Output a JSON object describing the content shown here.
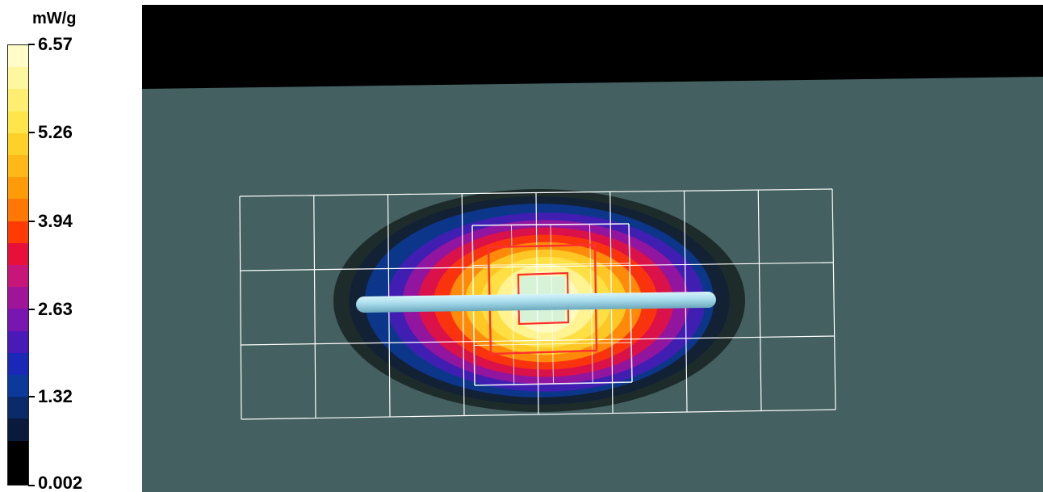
{
  "chart_data": {
    "type": "heatmap",
    "title": "",
    "unit": "mW/g",
    "colorbar": {
      "min": 0.002,
      "max": 6.57,
      "tick_labels": [
        "6.57",
        "5.26",
        "3.94",
        "2.63",
        "1.32",
        "0.002"
      ],
      "tick_values": [
        6.57,
        5.26,
        3.94,
        2.63,
        1.32,
        0.002
      ],
      "colors_top_to_bottom": [
        "#fffcc8",
        "#fff6a0",
        "#ffee70",
        "#ffe44a",
        "#ffd128",
        "#ffb815",
        "#ff9a08",
        "#ff7805",
        "#ff3a05",
        "#e8103a",
        "#c8157a",
        "#a0149a",
        "#7a16b0",
        "#4a1ab8",
        "#1a28b8",
        "#0c3a9a",
        "#0a2a6a",
        "#0a1a3c",
        "#000000",
        "#000000"
      ]
    },
    "phantom": {
      "background_color": "#446060",
      "top_region_color": "#000000"
    },
    "colors": {
      "coarse_grid": "#ffffff",
      "fine_grid": "#ffffff",
      "peak_cube_outer": "#ff3030",
      "peak_cube_inner": "#ff3030",
      "dipole": "#a8dcec"
    },
    "field_levels": [
      0.3,
      0.9,
      1.5,
      2.1,
      2.7,
      3.3,
      3.9,
      4.5,
      5.0,
      5.5,
      6.0,
      6.4
    ],
    "peak_value": 6.57
  }
}
